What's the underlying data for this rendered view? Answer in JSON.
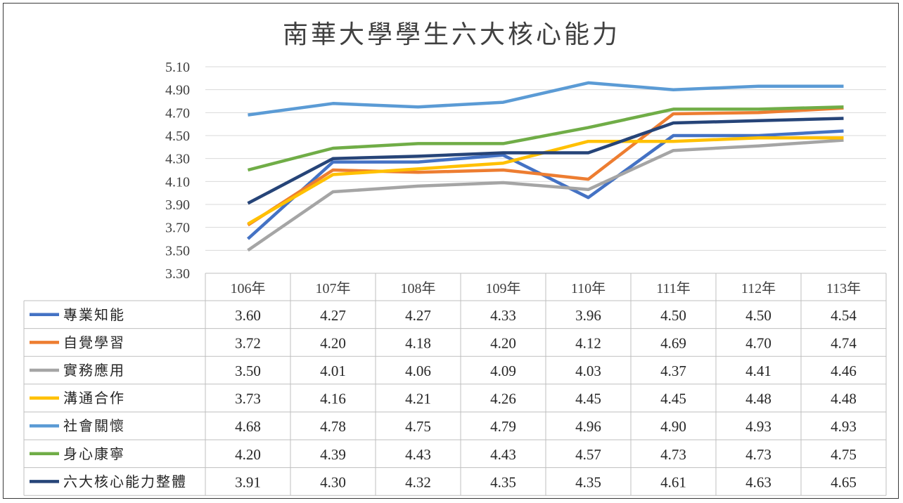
{
  "chart_data": {
    "type": "line",
    "title": "南華大學學生六大核心能力",
    "ylim": [
      3.3,
      5.1
    ],
    "yticks": [
      "5.10",
      "4.90",
      "4.70",
      "4.50",
      "4.30",
      "4.10",
      "3.90",
      "3.70",
      "3.50",
      "3.30"
    ],
    "categories": [
      "106年",
      "107年",
      "108年",
      "109年",
      "110年",
      "111年",
      "112年",
      "113年"
    ],
    "grid": true,
    "legend": "data table below chart",
    "series": [
      {
        "name": "專業知能",
        "color": "#4472C4",
        "values": [
          3.6,
          4.27,
          4.27,
          4.33,
          3.96,
          4.5,
          4.5,
          4.54
        ],
        "labels": [
          "3.60",
          "4.27",
          "4.27",
          "4.33",
          "3.96",
          "4.50",
          "4.50",
          "4.54"
        ]
      },
      {
        "name": "自覺學習",
        "color": "#ED7D31",
        "values": [
          3.72,
          4.2,
          4.18,
          4.2,
          4.12,
          4.69,
          4.7,
          4.74
        ],
        "labels": [
          "3.72",
          "4.20",
          "4.18",
          "4.20",
          "4.12",
          "4.69",
          "4.70",
          "4.74"
        ]
      },
      {
        "name": "實務應用",
        "color": "#A5A5A5",
        "values": [
          3.5,
          4.01,
          4.06,
          4.09,
          4.03,
          4.37,
          4.41,
          4.46
        ],
        "labels": [
          "3.50",
          "4.01",
          "4.06",
          "4.09",
          "4.03",
          "4.37",
          "4.41",
          "4.46"
        ]
      },
      {
        "name": "溝通合作",
        "color": "#FFC000",
        "values": [
          3.73,
          4.16,
          4.21,
          4.26,
          4.45,
          4.45,
          4.48,
          4.48
        ],
        "labels": [
          "3.73",
          "4.16",
          "4.21",
          "4.26",
          "4.45",
          "4.45",
          "4.48",
          "4.48"
        ]
      },
      {
        "name": "社會關懷",
        "color": "#5B9BD5",
        "values": [
          4.68,
          4.78,
          4.75,
          4.79,
          4.96,
          4.9,
          4.93,
          4.93
        ],
        "labels": [
          "4.68",
          "4.78",
          "4.75",
          "4.79",
          "4.96",
          "4.90",
          "4.93",
          "4.93"
        ]
      },
      {
        "name": "身心康寧",
        "color": "#70AD47",
        "values": [
          4.2,
          4.39,
          4.43,
          4.43,
          4.57,
          4.73,
          4.73,
          4.75
        ],
        "labels": [
          "4.20",
          "4.39",
          "4.43",
          "4.43",
          "4.57",
          "4.73",
          "4.73",
          "4.75"
        ]
      },
      {
        "name": "六大核心能力整體",
        "color": "#264478",
        "values": [
          3.91,
          4.3,
          4.32,
          4.35,
          4.35,
          4.61,
          4.63,
          4.65
        ],
        "labels": [
          "3.91",
          "4.30",
          "4.32",
          "4.35",
          "4.35",
          "4.61",
          "4.63",
          "4.65"
        ]
      }
    ]
  }
}
